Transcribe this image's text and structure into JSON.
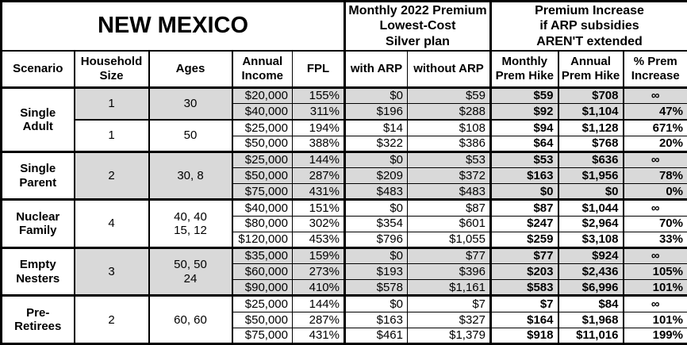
{
  "title": "NEW MEXICO",
  "sections": {
    "premium": "Monthly 2022 Premium\nLowest-Cost\nSilver plan",
    "increase": "Premium Increase\nif ARP subsidies\nAREN'T extended"
  },
  "columns": {
    "scenario": "Scenario",
    "household_size": "Household\nSize",
    "ages": "Ages",
    "annual_income": "Annual\nIncome",
    "fpl": "FPL",
    "with_arp": "with ARP",
    "without_arp": "without ARP",
    "monthly_hike": "Monthly\nPrem Hike",
    "annual_hike": "Annual\nPrem Hike",
    "pct_increase": "% Prem\nIncrease"
  },
  "colors": {
    "shaded_row": "#d9d9d9",
    "border": "#000000",
    "background": "#ffffff"
  },
  "rows": [
    {
      "scenario": "Single\nAdult",
      "scenario_span": 4,
      "household_size": "1",
      "ages": "30",
      "sub_span": 2,
      "shaded": true,
      "values": [
        "$20,000",
        "155%",
        "$0",
        "$59",
        "$59",
        "$708",
        "∞"
      ]
    },
    {
      "shaded": true,
      "values": [
        "$40,000",
        "311%",
        "$196",
        "$288",
        "$92",
        "$1,104",
        "47%"
      ]
    },
    {
      "household_size": "1",
      "ages": "50",
      "sub_span": 2,
      "shaded": false,
      "values": [
        "$25,000",
        "194%",
        "$14",
        "$108",
        "$94",
        "$1,128",
        "671%"
      ]
    },
    {
      "shaded": false,
      "values": [
        "$50,000",
        "388%",
        "$322",
        "$386",
        "$64",
        "$768",
        "20%"
      ]
    },
    {
      "scenario": "Single\nParent",
      "scenario_span": 3,
      "household_size": "2",
      "ages": "30, 8",
      "sub_span": 3,
      "shaded": true,
      "values": [
        "$25,000",
        "144%",
        "$0",
        "$53",
        "$53",
        "$636",
        "∞"
      ]
    },
    {
      "shaded": true,
      "values": [
        "$50,000",
        "287%",
        "$209",
        "$372",
        "$163",
        "$1,956",
        "78%"
      ]
    },
    {
      "shaded": true,
      "values": [
        "$75,000",
        "431%",
        "$483",
        "$483",
        "$0",
        "$0",
        "0%"
      ]
    },
    {
      "scenario": "Nuclear\nFamily",
      "scenario_span": 3,
      "household_size": "4",
      "ages": "40, 40\n15, 12",
      "sub_span": 3,
      "shaded": false,
      "values": [
        "$40,000",
        "151%",
        "$0",
        "$87",
        "$87",
        "$1,044",
        "∞"
      ]
    },
    {
      "shaded": false,
      "values": [
        "$80,000",
        "302%",
        "$354",
        "$601",
        "$247",
        "$2,964",
        "70%"
      ]
    },
    {
      "shaded": false,
      "values": [
        "$120,000",
        "453%",
        "$796",
        "$1,055",
        "$259",
        "$3,108",
        "33%"
      ]
    },
    {
      "scenario": "Empty\nNesters",
      "scenario_span": 3,
      "household_size": "3",
      "ages": "50, 50\n24",
      "sub_span": 3,
      "shaded": true,
      "values": [
        "$35,000",
        "159%",
        "$0",
        "$77",
        "$77",
        "$924",
        "∞"
      ]
    },
    {
      "shaded": true,
      "values": [
        "$60,000",
        "273%",
        "$193",
        "$396",
        "$203",
        "$2,436",
        "105%"
      ]
    },
    {
      "shaded": true,
      "values": [
        "$90,000",
        "410%",
        "$578",
        "$1,161",
        "$583",
        "$6,996",
        "101%"
      ]
    },
    {
      "scenario": "Pre-\nRetirees",
      "scenario_span": 3,
      "household_size": "2",
      "ages": "60, 60",
      "sub_span": 3,
      "shaded": false,
      "values": [
        "$25,000",
        "144%",
        "$0",
        "$7",
        "$7",
        "$84",
        "∞"
      ]
    },
    {
      "shaded": false,
      "values": [
        "$50,000",
        "287%",
        "$163",
        "$327",
        "$164",
        "$1,968",
        "101%"
      ]
    },
    {
      "shaded": false,
      "values": [
        "$75,000",
        "431%",
        "$461",
        "$1,379",
        "$918",
        "$11,016",
        "199%"
      ]
    }
  ]
}
